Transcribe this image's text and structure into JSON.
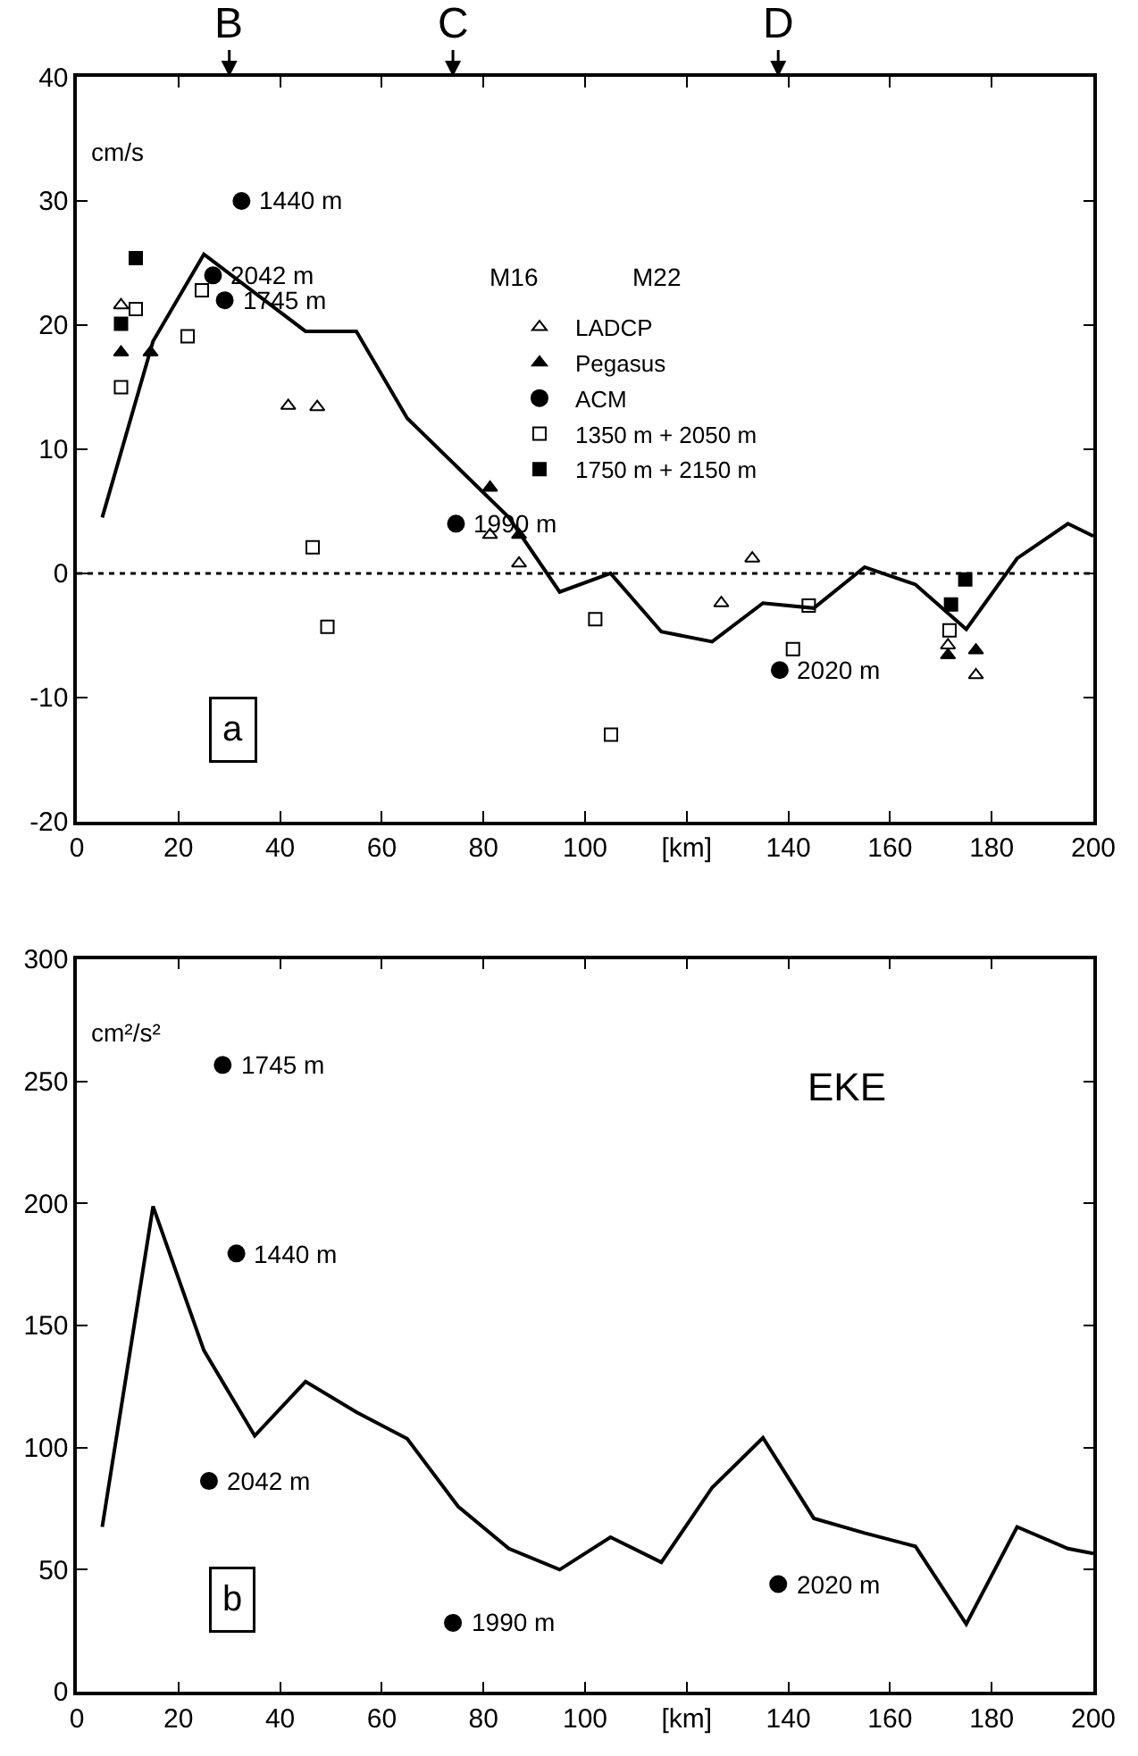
{
  "chart_data": [
    {
      "type": "scatter",
      "ylabel": "cm/s",
      "xlim": [
        0,
        200
      ],
      "ylim": [
        -20,
        40
      ],
      "xticks": [
        0,
        20,
        40,
        60,
        80,
        100,
        {
          "value": 120,
          "label": "[km]"
        },
        140,
        160,
        180,
        200
      ],
      "yticks": [
        -20,
        -10,
        0,
        10,
        20,
        30,
        40
      ],
      "legend": "top right",
      "series": [
        {
          "type": "line",
          "color": "#000000",
          "marker": "none",
          "line_style": "solid",
          "x": [
            5,
            15,
            25,
            45,
            55,
            65,
            85,
            95,
            105,
            115,
            125,
            135,
            145,
            155,
            165,
            175,
            185,
            195,
            200
          ],
          "values": [
            4.5,
            18.7,
            25.7,
            19.5,
            19.5,
            12.5,
            4.5,
            -1.5,
            0,
            -4.7,
            -5.5,
            -2.4,
            -2.8,
            0.5,
            -0.9,
            -4.5,
            1.2,
            4,
            3
          ]
        },
        {
          "name": "LADCP",
          "color": "#000000",
          "marker": "triangle-open",
          "x": [
            8.7,
            41.6,
            47.3,
            81.3,
            87,
            126.8,
            132.9,
            171.4,
            176.9
          ],
          "values": [
            21.6,
            13.5,
            13.4,
            3.1,
            0.8,
            -2.4,
            1.2,
            -5.8,
            -8.2
          ]
        },
        {
          "name": "Pegasus",
          "color": "#000000",
          "marker": "triangle",
          "x": [
            8.7,
            14.5,
            81.3,
            87,
            171.4,
            176.9
          ],
          "values": [
            17.8,
            17.8,
            6.9,
            3.1,
            -6.6,
            -6.2
          ]
        },
        {
          "name": "ACM",
          "color": "#000000",
          "marker": "circle",
          "x": [
            32.4,
            26.8,
            29.1,
            74.6,
            138.3
          ],
          "values": [
            30,
            24,
            22,
            4,
            -7.8
          ]
        },
        {
          "name": "1350 m + 2050 m",
          "color": "#000000",
          "marker": "square-open",
          "x": [
            8.7,
            11.6,
            21.8,
            24.6,
            46.4,
            49.3,
            102,
            105.1,
            140.9,
            144,
            171.7
          ],
          "values": [
            15,
            21.3,
            19.1,
            22.8,
            2.1,
            -4.3,
            -3.7,
            -13,
            -6.1,
            -2.6,
            -4.6
          ]
        },
        {
          "name": "1750 m + 2150 m",
          "color": "#000000",
          "marker": "square",
          "x": [
            8.7,
            11.6,
            172,
            174.8
          ],
          "values": [
            20.1,
            25.4,
            -2.5,
            -0.5
          ]
        }
      ],
      "ref_lines": [
        {
          "axis": "y",
          "value": 0,
          "line_style": "dotted",
          "color": "#000000"
        }
      ],
      "annotations": [
        {
          "text": "1440 m",
          "x": 32.4,
          "y": 30
        },
        {
          "text": "2042 m",
          "x": 26.8,
          "y": 24
        },
        {
          "text": "1745 m",
          "x": 29.1,
          "y": 22
        },
        {
          "text": "1990 m",
          "x": 74.6,
          "y": 4
        },
        {
          "text": "2020 m",
          "x": 138.3,
          "y": -7.8
        },
        "B",
        "C",
        "D",
        "M16",
        "M22",
        "a"
      ]
    },
    {
      "type": "scatter",
      "ylabel": "cm²/s²",
      "xlim": [
        0,
        200
      ],
      "ylim": [
        0,
        300
      ],
      "xticks": [
        0,
        20,
        40,
        60,
        80,
        100,
        {
          "value": 120,
          "label": "[km]"
        },
        140,
        160,
        180,
        200
      ],
      "yticks": [
        0,
        50,
        100,
        150,
        200,
        250,
        300
      ],
      "series": [
        {
          "type": "line",
          "color": "#000000",
          "marker": "none",
          "line_style": "solid",
          "x": [
            5,
            15,
            25,
            35,
            45,
            55,
            65,
            75,
            85,
            95,
            105,
            115,
            125,
            135,
            145,
            155,
            165,
            175,
            185,
            195,
            200
          ],
          "values": [
            67.5,
            198.8,
            139.8,
            104.8,
            127,
            114.5,
            103.6,
            75.9,
            58.6,
            50,
            63.3,
            53,
            83.6,
            104,
            71,
            65,
            59.5,
            27.7,
            67.5,
            58.6,
            56.6
          ]
        },
        {
          "color": "#000000",
          "marker": "circle",
          "x": [
            28.7,
            31.4,
            26,
            74,
            138
          ],
          "values": [
            256.7,
            179.5,
            86.3,
            28.2,
            44.1
          ]
        }
      ],
      "annotations": [
        {
          "text": "1745 m",
          "x": 28.7,
          "y": 256.7
        },
        {
          "text": "1440 m",
          "x": 31.4,
          "y": 179.5
        },
        {
          "text": "2042 m",
          "x": 26,
          "y": 86.3
        },
        {
          "text": "1990 m",
          "x": 74,
          "y": 28.2
        },
        {
          "text": "2020 m",
          "x": 138,
          "y": 44.1
        },
        "EKE",
        "b"
      ]
    }
  ]
}
